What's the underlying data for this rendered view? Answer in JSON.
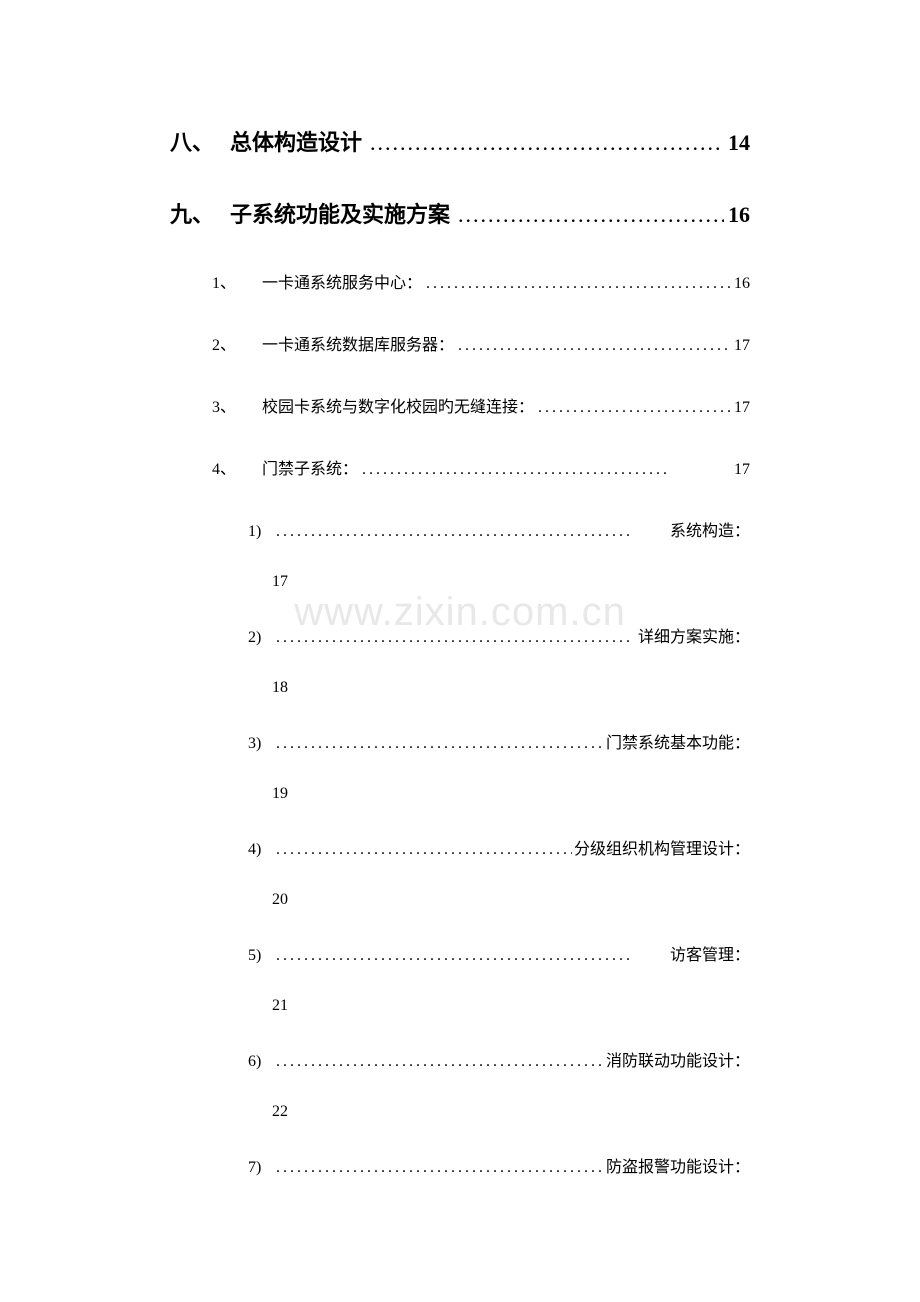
{
  "watermark": "www.zixin.com.cn",
  "dots_long": "...................................................",
  "dots_med": "............................................",
  "level1": [
    {
      "num": "八、",
      "title": "总体构造设计",
      "page": "14"
    },
    {
      "num": "九、",
      "title": "子系统功能及实施方案",
      "page": "16"
    }
  ],
  "level2": [
    {
      "num": "1、",
      "title": "一卡通系统服务中心：",
      "page": "16"
    },
    {
      "num": "2、",
      "title": "一卡通系统数据库服务器：",
      "page": "17"
    },
    {
      "num": "3、",
      "title": "校园卡系统与数字化校园旳无缝连接：",
      "page": "17"
    },
    {
      "num": "4、",
      "title": "门禁子系统：",
      "page": "17"
    }
  ],
  "level3": [
    {
      "num": "1)",
      "title": "系统构造：",
      "page": "17"
    },
    {
      "num": "2)",
      "title": "详细方案实施：",
      "page": "18"
    },
    {
      "num": "3)",
      "title": "门禁系统基本功能：",
      "page": "19"
    },
    {
      "num": "4)",
      "title": "分级组织机构管理设计：",
      "page": "20"
    },
    {
      "num": "5)",
      "title": "访客管理：",
      "page": "21"
    },
    {
      "num": "6)",
      "title": "消防联动功能设计：",
      "page": "22"
    },
    {
      "num": "7)",
      "title": "防盗报警功能设计：",
      "page": ""
    }
  ]
}
